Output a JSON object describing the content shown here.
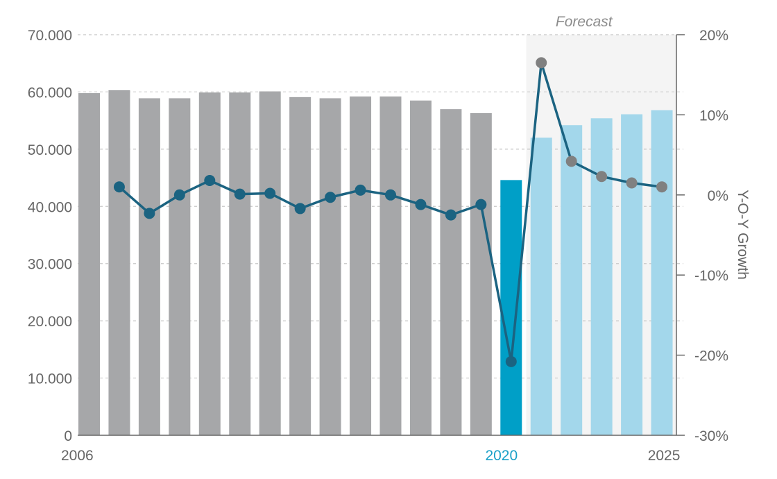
{
  "chart_data": {
    "type": "bar",
    "categories": [
      "2006",
      "2007",
      "2008",
      "2009",
      "2010",
      "2011",
      "2012",
      "2013",
      "2014",
      "2015",
      "2016",
      "2017",
      "2018",
      "2019",
      "2020",
      "2021",
      "2022",
      "2023",
      "2024",
      "2025"
    ],
    "series": [
      {
        "type": "bar",
        "axis": "left",
        "values": [
          59800,
          60300,
          58900,
          58900,
          59900,
          59900,
          60100,
          59100,
          58900,
          59200,
          59200,
          58500,
          57000,
          56300,
          44600,
          52000,
          54200,
          55400,
          56100,
          56800
        ]
      },
      {
        "type": "line",
        "axis": "right",
        "values": [
          null,
          1.0,
          -2.3,
          0.0,
          1.8,
          0.1,
          0.2,
          -1.7,
          -0.3,
          0.6,
          0.0,
          -1.2,
          -2.5,
          -1.2,
          -20.8,
          16.5,
          4.2,
          2.3,
          1.5,
          1.0
        ]
      }
    ],
    "left_axis": {
      "min": 0,
      "max": 70000,
      "ticks": [
        "0",
        "10.000",
        "20.000",
        "30.000",
        "40.000",
        "50.000",
        "60.000",
        "70.000"
      ]
    },
    "right_axis": {
      "min": -30,
      "max": 20,
      "label": "Y-O-Y Growth",
      "ticks": [
        "-30%",
        "-20%",
        "-10%",
        "0%",
        "10%",
        "20%"
      ]
    },
    "x_tick_labels": [
      {
        "index": 0,
        "label": "2006"
      },
      {
        "index": 14,
        "label": "2020"
      },
      {
        "index": 19,
        "label": "2025"
      }
    ],
    "forecast": {
      "label": "Forecast",
      "start_index": 15,
      "end_index": 19
    },
    "grid": true,
    "colors": {
      "historical_bar": "#a6a7a9",
      "current_bar": "#009fc7",
      "forecast_bar": "#a3d7eb",
      "forecast_background": "#f4f4f4",
      "line": "#1b6381",
      "forecast_point": "#808080",
      "grid": "#c8c8c8",
      "axis": "#666666",
      "highlight_label": "#1aa0c8"
    }
  }
}
